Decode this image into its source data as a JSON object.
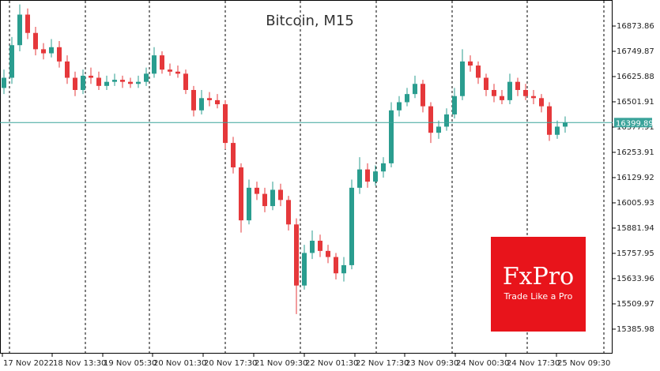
{
  "chart_data": {
    "type": "candlestick",
    "title": "Bitcoin, M15",
    "up_color": "#2a9d8f",
    "down_color": "#e5383b",
    "open": [
      16570,
      16620,
      16780,
      16930,
      16840,
      16760,
      16740,
      16770,
      16700,
      16620,
      16560,
      16630,
      16620,
      16580,
      16600,
      16610,
      16600,
      16590,
      16600,
      16640,
      16730,
      16660,
      16650,
      16640,
      16560,
      16460,
      16520,
      16510,
      16490,
      16300,
      16180,
      15920,
      16080,
      16050,
      15990,
      16070,
      16020,
      15900,
      15600,
      15760,
      15820,
      15770,
      15740,
      15660,
      15700,
      16080,
      16170,
      16110,
      16160,
      16200,
      16460,
      16500,
      16540,
      16590,
      16480,
      16350,
      16380,
      16440,
      16530,
      16700,
      16680,
      16620,
      16560,
      16530,
      16510,
      16600,
      16560,
      16530,
      16520,
      16480,
      16340,
      16380
    ],
    "high": [
      16660,
      16820,
      16980,
      16960,
      16870,
      16790,
      16810,
      16800,
      16730,
      16650,
      16660,
      16670,
      16650,
      16630,
      16640,
      16630,
      16620,
      16630,
      16670,
      16770,
      16750,
      16690,
      16680,
      16660,
      16580,
      16560,
      16550,
      16540,
      16510,
      16330,
      16200,
      16120,
      16110,
      16080,
      16110,
      16100,
      16040,
      15930,
      15800,
      15870,
      15850,
      15800,
      15760,
      15740,
      16120,
      16230,
      16200,
      16190,
      16230,
      16500,
      16530,
      16570,
      16630,
      16610,
      16500,
      16410,
      16470,
      16570,
      16760,
      16730,
      16700,
      16640,
      16590,
      16560,
      16640,
      16620,
      16590,
      16560,
      16540,
      16500,
      16410,
      16430
    ],
    "low": [
      16540,
      16590,
      16750,
      16810,
      16730,
      16710,
      16720,
      16670,
      16590,
      16530,
      16540,
      16590,
      16560,
      16560,
      16580,
      16570,
      16570,
      16570,
      16580,
      16620,
      16640,
      16630,
      16620,
      16540,
      16430,
      16440,
      16480,
      16470,
      16270,
      16150,
      15860,
      15900,
      16020,
      15960,
      15970,
      15990,
      15870,
      15460,
      15580,
      15730,
      15740,
      15710,
      15630,
      15620,
      15680,
      16050,
      16080,
      16090,
      16130,
      16180,
      16430,
      16480,
      16520,
      16450,
      16300,
      16320,
      16360,
      16420,
      16510,
      16650,
      16590,
      16530,
      16500,
      16490,
      16490,
      16530,
      16510,
      16490,
      16450,
      16310,
      16320,
      16350
    ],
    "close": [
      16620,
      16780,
      16930,
      16840,
      16760,
      16740,
      16770,
      16700,
      16620,
      16560,
      16630,
      16620,
      16580,
      16600,
      16610,
      16600,
      16590,
      16600,
      16640,
      16730,
      16660,
      16650,
      16640,
      16560,
      16460,
      16520,
      16510,
      16490,
      16300,
      16180,
      15920,
      16080,
      16050,
      15990,
      16070,
      16020,
      15900,
      15600,
      15760,
      15820,
      15770,
      15740,
      15660,
      15700,
      16080,
      16170,
      16110,
      16160,
      16200,
      16460,
      16500,
      16540,
      16590,
      16480,
      16350,
      16380,
      16440,
      16530,
      16700,
      16680,
      16620,
      16560,
      16530,
      16510,
      16600,
      16560,
      16530,
      16520,
      16480,
      16340,
      16380,
      16400
    ],
    "xlim": [
      -0.5,
      77
    ],
    "xticks": [
      {
        "value": -0.2,
        "label": "17 Nov 2022"
      },
      {
        "value": 6.1,
        "label": "18 Nov 13:30"
      },
      {
        "value": 12.5,
        "label": "19 Nov 05:30"
      },
      {
        "value": 18.8,
        "label": "20 Nov 01:30"
      },
      {
        "value": 25.2,
        "label": "20 Nov 17:30"
      },
      {
        "value": 31.6,
        "label": "21 Nov 09:30"
      },
      {
        "value": 38,
        "label": "22 Nov 01:30"
      },
      {
        "value": 44.4,
        "label": "22 Nov 17:30"
      },
      {
        "value": 50.7,
        "label": "23 Nov 09:30"
      },
      {
        "value": 57.1,
        "label": "24 Nov 00:30"
      },
      {
        "value": 63.5,
        "label": "24 Nov 17:30"
      },
      {
        "value": 69.9,
        "label": "25 Nov 09:30"
      }
    ],
    "ylim": [
      15265.7,
      17001.7
    ],
    "yticks": [
      16873.86,
      16749.87,
      16625.88,
      16501.91,
      16377.91,
      16253.91,
      16129.92,
      16005.93,
      15881.94,
      15757.95,
      15633.96,
      15509.97,
      15385.98
    ],
    "price_line": 16399.89,
    "price_line_color": "#3aa39a"
  },
  "logo": {
    "name": "FxPro",
    "tagline": "Trade Like a Pro"
  }
}
